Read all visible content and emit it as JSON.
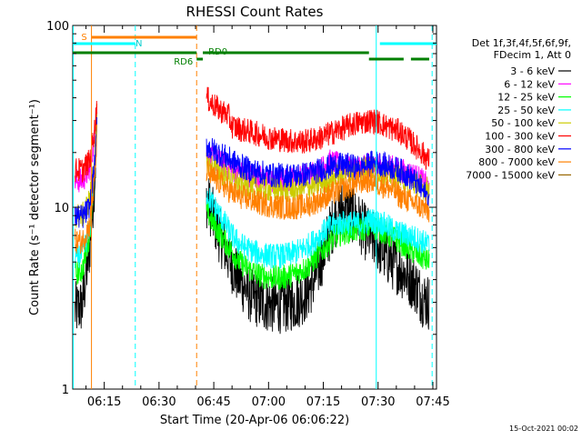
{
  "chart_data": {
    "type": "line",
    "title": "RHESSI Count Rates",
    "xlabel": "Start Time (20-Apr-06 06:06:22)",
    "ylabel": "Count Rate (s⁻¹ detector segment⁻¹)",
    "yscale": "log",
    "ylim": [
      1,
      100
    ],
    "xlim_minutes": [
      6.37,
      106.0
    ],
    "x_tick_labels": [
      "06:15",
      "06:30",
      "06:45",
      "07:00",
      "07:15",
      "07:30",
      "07:45"
    ],
    "x_tick_minutes": [
      15,
      30,
      45,
      60,
      75,
      90,
      105
    ],
    "y_tick_labels": [
      "1",
      "10",
      "100"
    ],
    "y_tick_values": [
      1,
      10,
      100
    ],
    "legend_header": [
      "Det 1f,3f,4f,5f,6f,9f,",
      "FDecim 1, Att 0"
    ],
    "legend_position": "right",
    "series": [
      {
        "name": "3 - 6 keV",
        "color": "#000000",
        "segments": [
          {
            "x": [
              7,
              9,
              11,
              12.5,
              13
            ],
            "y": [
              2.7,
              2.9,
              6,
              16,
              30
            ]
          },
          {
            "x": [
              43,
              44,
              46,
              48,
              50,
              52,
              55,
              58,
              61,
              64,
              67,
              70,
              72,
              74,
              76,
              78,
              80,
              82,
              84,
              86,
              88,
              90,
              92,
              94,
              96,
              98,
              100,
              101,
              102,
              103,
              104
            ],
            "y": [
              11,
              10,
              7.5,
              6,
              4.8,
              4.0,
              3.3,
              3.0,
              2.9,
              2.9,
              3.0,
              3.3,
              3.8,
              4.8,
              6.5,
              8.5,
              9.8,
              9.5,
              8.8,
              7.5,
              6.8,
              6.2,
              5.5,
              5.0,
              4.6,
              4.2,
              3.8,
              3.5,
              3.2,
              3.1,
              3.0
            ]
          }
        ]
      },
      {
        "name": "6 - 12 keV",
        "color": "#ff00ff",
        "segments": [
          {
            "x": [
              7,
              9,
              11,
              12.5,
              13
            ],
            "y": [
              14,
              14,
              16,
              25,
              35
            ]
          },
          {
            "x": [
              43,
              44,
              46,
              48,
              50,
              52,
              55,
              58,
              61,
              64,
              67,
              70,
              72,
              74,
              75.5,
              76,
              78,
              80,
              82,
              84,
              86,
              88,
              90,
              92,
              94,
              96,
              98,
              100,
              102,
              104
            ],
            "y": [
              20,
              19,
              18,
              17,
              16,
              15.5,
              15,
              14.5,
              14,
              14,
              14.5,
              15,
              15.5,
              16,
              17,
              18,
              17.5,
              17,
              16.5,
              16.5,
              17,
              17,
              17,
              17,
              16.5,
              16,
              15.5,
              15,
              14,
              13
            ]
          }
        ]
      },
      {
        "name": "12 - 25 keV",
        "color": "#00ff00",
        "segments": [
          {
            "x": [
              7,
              9,
              11,
              12.5,
              13
            ],
            "y": [
              4.3,
              4.5,
              7,
              18,
              30
            ]
          },
          {
            "x": [
              43,
              44,
              46,
              48,
              50,
              52,
              55,
              58,
              61,
              64,
              67,
              70,
              72,
              74,
              76,
              78,
              80,
              82,
              84,
              86,
              88,
              90,
              92,
              94,
              96,
              98,
              100,
              102,
              104
            ],
            "y": [
              9.5,
              8.8,
              7.5,
              6.5,
              5.7,
              5.0,
              4.5,
              4.2,
              4.1,
              4.1,
              4.3,
              4.6,
              5.0,
              5.6,
              6.2,
              6.8,
              7.2,
              7.4,
              7.5,
              7.6,
              7.8,
              7.6,
              7.2,
              6.8,
              6.4,
              6.0,
              5.6,
              5.3,
              5.0
            ]
          }
        ]
      },
      {
        "name": "25 - 50 keV",
        "color": "#00ffff",
        "segments": [
          {
            "x": [
              7,
              9,
              11,
              12.5,
              13
            ],
            "y": [
              5.3,
              5.5,
              7.5,
              18,
              30
            ]
          },
          {
            "x": [
              43,
              44,
              46,
              48,
              50,
              52,
              55,
              58,
              61,
              64,
              67,
              70,
              72,
              74,
              76,
              78,
              80,
              82,
              84,
              86,
              88,
              90,
              92,
              94,
              96,
              98,
              100,
              102,
              104
            ],
            "y": [
              12,
              11,
              9.5,
              8.2,
              7.0,
              6.3,
              5.8,
              5.5,
              5.4,
              5.4,
              5.6,
              6.0,
              6.4,
              7.0,
              7.6,
              8.0,
              8.2,
              8.2,
              8.1,
              8.2,
              8.5,
              8.3,
              8.0,
              7.5,
              7.2,
              7.0,
              6.8,
              6.5,
              6.2
            ]
          }
        ]
      },
      {
        "name": "50 - 100 keV",
        "color": "#cccc00",
        "segments": [
          {
            "x": [
              7,
              9,
              11,
              12.5,
              13
            ],
            "y": [
              9,
              9,
              11,
              20,
              32
            ]
          },
          {
            "x": [
              43,
              44,
              46,
              48,
              50,
              52,
              55,
              58,
              61,
              64,
              67,
              70,
              72,
              74,
              76,
              78,
              80,
              82,
              84,
              86,
              88,
              90,
              92,
              94,
              96,
              98,
              100,
              102,
              104
            ],
            "y": [
              18,
              17,
              16,
              15,
              14,
              13.5,
              13,
              12.7,
              12.5,
              12.5,
              12.5,
              12.8,
              13,
              13.5,
              14,
              14.5,
              15,
              15.5,
              16,
              16.5,
              16.5,
              16,
              15.5,
              15,
              14.5,
              14,
              13.5,
              13,
              12.5
            ]
          }
        ]
      },
      {
        "name": "100 - 300 keV",
        "color": "#ff0000",
        "segments": [
          {
            "x": [
              7,
              9,
              11,
              12.5,
              13
            ],
            "y": [
              16,
              16,
              18,
              28,
              38
            ]
          },
          {
            "x": [
              43,
              44,
              46,
              48,
              49,
              50,
              52,
              55,
              58,
              61,
              64,
              67,
              70,
              72,
              74,
              76,
              78,
              80,
              82,
              84,
              86,
              88,
              90,
              92,
              94,
              96,
              98,
              100,
              102,
              104
            ],
            "y": [
              40,
              38,
              35,
              33,
              32,
              28,
              27,
              26,
              25,
              24,
              23.5,
              23,
              23,
              23.5,
              24,
              25,
              26,
              27,
              28,
              29,
              29.5,
              30,
              29.5,
              28,
              27,
              26,
              24,
              22,
              20,
              18
            ]
          }
        ]
      },
      {
        "name": "300 - 800 keV",
        "color": "#0000ff",
        "segments": [
          {
            "x": [
              7,
              9,
              11,
              12.5,
              13
            ],
            "y": [
              9,
              8.8,
              10,
              18,
              28
            ]
          },
          {
            "x": [
              43,
              44,
              46,
              48,
              50,
              52,
              55,
              58,
              61,
              64,
              67,
              70,
              72,
              74,
              76,
              78,
              80,
              82,
              84,
              86,
              88,
              90,
              92,
              94,
              96,
              98,
              100,
              102,
              104
            ],
            "y": [
              22,
              21,
              20,
              19,
              18,
              17,
              16,
              15.5,
              15,
              15,
              15,
              15.2,
              15.5,
              16,
              16.5,
              17,
              17,
              17,
              16.5,
              16.5,
              17.5,
              17.5,
              17,
              16.5,
              16,
              15,
              14,
              12.5,
              11
            ]
          }
        ]
      },
      {
        "name": "800 - 7000 keV",
        "color": "#ff8000",
        "segments": [
          {
            "x": [
              7,
              9,
              11,
              12.5,
              13
            ],
            "y": [
              6.5,
              6.5,
              8,
              15,
              25
            ]
          },
          {
            "x": [
              43,
              44,
              46,
              48,
              50,
              52,
              55,
              58,
              61,
              64,
              67,
              70,
              72,
              74,
              76,
              78,
              80,
              82,
              84,
              86,
              88,
              90,
              92,
              94,
              96,
              98,
              100,
              102,
              104
            ],
            "y": [
              16,
              15,
              14,
              13,
              12,
              11.5,
              11,
              10.5,
              10.2,
              10,
              10,
              10.2,
              10.5,
              11,
              11.5,
              12,
              12.5,
              13,
              13.5,
              14,
              14,
              13.5,
              13,
              12.5,
              11.5,
              11,
              10.5,
              10,
              9.5
            ]
          }
        ]
      },
      {
        "name": "7000 - 15000 keV",
        "color": "#996600",
        "segments": []
      }
    ],
    "attenuator_flags": [
      {
        "label": "S",
        "color": "#ff8000",
        "start_min": 11.5,
        "end_min": 40.3
      }
    ],
    "state_bars": [
      {
        "label": "N",
        "color": "#00ffff",
        "segments": [
          [
            6.4,
            23.5
          ],
          [
            90.5,
            106
          ]
        ]
      },
      {
        "label": "RD0",
        "color": "#007f00",
        "segments": [
          [
            6.4,
            40.3
          ],
          [
            42,
            87.5
          ]
        ]
      },
      {
        "label": "RD6",
        "color": "#007f00",
        "segments": [
          [
            40.3,
            42
          ],
          [
            87.5,
            97
          ],
          [
            99,
            104
          ]
        ]
      }
    ],
    "vlines": [
      {
        "minute": 11.5,
        "color": "#ff8000",
        "style": "solid"
      },
      {
        "minute": 40.3,
        "color": "#ff8000",
        "style": "dashed"
      },
      {
        "minute": 6.5,
        "color": "#00ffff",
        "style": "solid"
      },
      {
        "minute": 23.5,
        "color": "#00ffff",
        "style": "dashed"
      },
      {
        "minute": 89.5,
        "color": "#00ffff",
        "style": "solid"
      },
      {
        "minute": 104.8,
        "color": "#00ffff",
        "style": "dashed"
      }
    ],
    "footer_date": "15-Oct-2021 00:02"
  }
}
